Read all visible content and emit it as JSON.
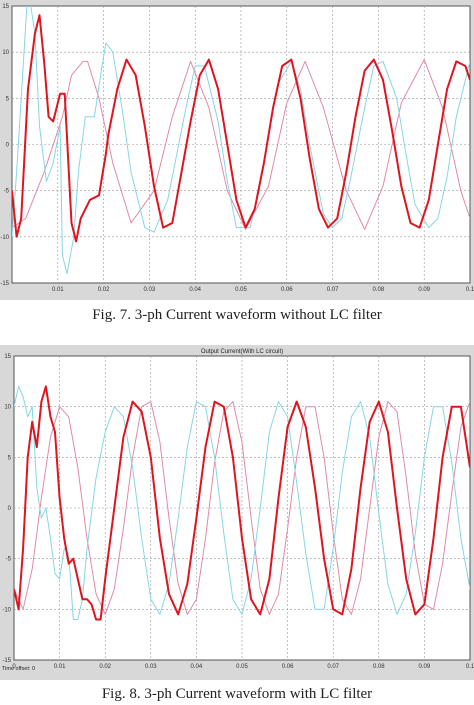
{
  "colors": {
    "phase_a": "#e0141e",
    "phase_b": "#e08aa6",
    "phase_c": "#86d6e3",
    "plot_bg": "#ffffff",
    "frame_bg": "#d8d8d8",
    "grid": "#9a9a9a"
  },
  "captions": {
    "fig7": "Fig. 7.   3-ph Current waveform without LC filter",
    "fig8": "Fig. 8.   3-ph Current waveform with LC filter"
  },
  "chart_data": [
    {
      "type": "line",
      "title": "",
      "xlim": [
        0,
        0.1
      ],
      "ylim": [
        -15,
        15
      ],
      "xticks": [
        "0.01",
        "0.02",
        "0.03",
        "0.04",
        "0.05",
        "0.06",
        "0.07",
        "0.08",
        "0.09",
        "0.1"
      ],
      "yticks": [
        "15",
        "10",
        "5",
        "0",
        "-5",
        "-10",
        "-15"
      ],
      "grid": true,
      "series": [
        {
          "color": "#e0141e",
          "x": [
            0,
            0.001,
            0.002,
            0.0035,
            0.005,
            0.006,
            0.007,
            0.008,
            0.009,
            0.0105,
            0.0115,
            0.013,
            0.014,
            0.015,
            0.017,
            0.019,
            0.0205,
            0.021,
            0.023,
            0.025,
            0.027,
            0.029,
            0.031,
            0.033,
            0.035,
            0.037,
            0.039,
            0.041,
            0.043,
            0.045,
            0.047,
            0.049,
            0.051,
            0.053,
            0.055,
            0.057,
            0.059,
            0.061,
            0.063,
            0.065,
            0.067,
            0.069,
            0.071,
            0.073,
            0.075,
            0.077,
            0.079,
            0.081,
            0.083,
            0.085,
            0.087,
            0.089,
            0.091,
            0.093,
            0.095,
            0.097,
            0.099,
            0.1
          ],
          "y": [
            -5,
            -10,
            -8,
            6,
            12,
            14,
            9,
            3,
            2.5,
            5.5,
            5.5,
            -8.5,
            -10.5,
            -8,
            -6,
            -5.5,
            -1,
            1,
            6,
            9.2,
            7.5,
            2,
            -4.5,
            -9,
            -8.5,
            -3,
            2.5,
            7.5,
            9.2,
            6,
            0,
            -6,
            -9,
            -7,
            -2,
            4,
            8.5,
            9.2,
            5,
            -1.5,
            -7,
            -9,
            -8,
            -3,
            3,
            8,
            9.2,
            7,
            1.5,
            -4.5,
            -8.5,
            -9,
            -6,
            0,
            6,
            9,
            8.5,
            7
          ]
        },
        {
          "color": "#e08aa6",
          "x": [
            0,
            0.003,
            0.007,
            0.011,
            0.013,
            0.0155,
            0.0165,
            0.019,
            0.022,
            0.026,
            0.031,
            0.035,
            0.039,
            0.043,
            0.047,
            0.051,
            0.056,
            0.06,
            0.064,
            0.068,
            0.073,
            0.077,
            0.081,
            0.085,
            0.09,
            0.094,
            0.098,
            0.1
          ],
          "y": [
            -9,
            -8,
            -3,
            3,
            7.5,
            9,
            9,
            5,
            -2,
            -8.5,
            -5,
            3,
            9,
            4,
            -5,
            -9.2,
            -4.5,
            4.5,
            9,
            4,
            -5,
            -9.2,
            -4.5,
            4.5,
            9.2,
            4,
            -5,
            -8
          ]
        },
        {
          "color": "#86d6e3",
          "x": [
            0,
            0.001,
            0.002,
            0.0035,
            0.005,
            0.006,
            0.0075,
            0.009,
            0.0105,
            0.011,
            0.012,
            0.0135,
            0.0145,
            0.016,
            0.018,
            0.0195,
            0.0205,
            0.022,
            0.024,
            0.026,
            0.029,
            0.031,
            0.034,
            0.036,
            0.038,
            0.04,
            0.042,
            0.045,
            0.047,
            0.049,
            0.052,
            0.054,
            0.056,
            0.058,
            0.061,
            0.063,
            0.065,
            0.068,
            0.07,
            0.072,
            0.074,
            0.077,
            0.079,
            0.081,
            0.084,
            0.086,
            0.088,
            0.091,
            0.093,
            0.095,
            0.097,
            0.1
          ],
          "y": [
            -10,
            -3,
            5,
            17,
            12,
            2,
            -4,
            -2,
            2,
            -12,
            -14,
            -10,
            -3,
            3,
            3,
            8,
            11,
            10,
            4,
            -3,
            -9,
            -9.5,
            -6,
            -1,
            4,
            8.5,
            8.5,
            2.5,
            -4,
            -9,
            -9,
            -5,
            1,
            6.5,
            9,
            6,
            0,
            -7.5,
            -9,
            -8,
            -3.5,
            4,
            8.5,
            9,
            5,
            -1,
            -6.5,
            -9,
            -8,
            -3.5,
            3,
            9
          ]
        }
      ]
    },
    {
      "type": "line",
      "title": "Output Current(With LC circuit)",
      "xlabel": "Time offset:  0",
      "xlim": [
        0,
        0.1
      ],
      "ylim": [
        -15,
        15
      ],
      "xticks": [
        "0",
        "0.01",
        "0.02",
        "0.03",
        "0.04",
        "0.05",
        "0.06",
        "0.07",
        "0.08",
        "0.09",
        "0.1"
      ],
      "yticks": [
        "15",
        "10",
        "5",
        "0",
        "-5",
        "-10",
        "-15"
      ],
      "grid": true,
      "series": [
        {
          "color": "#e0141e",
          "x": [
            0,
            0.001,
            0.002,
            0.003,
            0.004,
            0.005,
            0.006,
            0.007,
            0.008,
            0.009,
            0.01,
            0.011,
            0.012,
            0.013,
            0.014,
            0.015,
            0.016,
            0.017,
            0.018,
            0.019,
            0.02,
            0.022,
            0.024,
            0.026,
            0.028,
            0.03,
            0.032,
            0.034,
            0.036,
            0.038,
            0.04,
            0.042,
            0.044,
            0.046,
            0.048,
            0.05,
            0.052,
            0.054,
            0.056,
            0.058,
            0.06,
            0.062,
            0.064,
            0.066,
            0.068,
            0.07,
            0.072,
            0.074,
            0.076,
            0.078,
            0.08,
            0.082,
            0.084,
            0.086,
            0.088,
            0.09,
            0.092,
            0.094,
            0.096,
            0.098,
            0.1
          ],
          "y": [
            -8,
            -10,
            -4,
            5,
            8.5,
            6,
            10.5,
            12,
            9,
            7.5,
            1,
            -3,
            -5.5,
            -5,
            -7,
            -9,
            -9,
            -9.5,
            -11,
            -11,
            -7,
            0,
            7,
            10.5,
            9.5,
            5,
            -3,
            -8.5,
            -10.5,
            -7.5,
            -1,
            6,
            10.5,
            10,
            5,
            -3,
            -9,
            -10.5,
            -7,
            1,
            8,
            10.5,
            8,
            2,
            -5,
            -10,
            -10.5,
            -6,
            2,
            8.5,
            10.5,
            7.5,
            0,
            -7,
            -10.5,
            -9.5,
            -3,
            5,
            10,
            10,
            4
          ]
        },
        {
          "color": "#e08aa6",
          "x": [
            0,
            0.002,
            0.004,
            0.006,
            0.008,
            0.01,
            0.012,
            0.014,
            0.016,
            0.018,
            0.02,
            0.022,
            0.024,
            0.026,
            0.028,
            0.03,
            0.032,
            0.034,
            0.036,
            0.038,
            0.04,
            0.042,
            0.044,
            0.046,
            0.048,
            0.05,
            0.052,
            0.054,
            0.056,
            0.058,
            0.06,
            0.062,
            0.064,
            0.066,
            0.068,
            0.07,
            0.072,
            0.074,
            0.076,
            0.078,
            0.08,
            0.082,
            0.084,
            0.086,
            0.088,
            0.09,
            0.092,
            0.094,
            0.096,
            0.098,
            0.1
          ],
          "y": [
            -8,
            -10,
            -6,
            1,
            7,
            10,
            9,
            4,
            -3,
            -8.5,
            -10.5,
            -8,
            -2,
            5,
            10,
            10.5,
            6.5,
            -1,
            -7.5,
            -10.5,
            -9,
            -3,
            4.5,
            9.5,
            10.5,
            6.5,
            -1,
            -8,
            -10.5,
            -8.5,
            -2,
            5,
            10,
            10,
            5,
            -2.5,
            -9,
            -10.5,
            -7,
            0,
            7,
            10.5,
            9.5,
            3,
            -4.5,
            -9.5,
            -10,
            -5.5,
            1.5,
            8,
            10.5
          ]
        },
        {
          "color": "#86d6e3",
          "x": [
            0,
            0.001,
            0.002,
            0.003,
            0.004,
            0.005,
            0.006,
            0.007,
            0.008,
            0.009,
            0.01,
            0.011,
            0.012,
            0.013,
            0.014,
            0.015,
            0.016,
            0.018,
            0.02,
            0.022,
            0.024,
            0.026,
            0.028,
            0.03,
            0.032,
            0.034,
            0.036,
            0.038,
            0.04,
            0.042,
            0.044,
            0.046,
            0.048,
            0.05,
            0.052,
            0.054,
            0.056,
            0.058,
            0.06,
            0.062,
            0.064,
            0.066,
            0.068,
            0.07,
            0.072,
            0.074,
            0.076,
            0.078,
            0.08,
            0.082,
            0.084,
            0.086,
            0.088,
            0.09,
            0.092,
            0.094,
            0.096,
            0.098,
            0.1
          ],
          "y": [
            10,
            12,
            11,
            9,
            10,
            2,
            -1,
            0,
            -3,
            -6.5,
            -7,
            -4,
            -4.5,
            -11,
            -11,
            -9,
            -4,
            3,
            7.5,
            10,
            9,
            4,
            -3,
            -9,
            -10.5,
            -7.5,
            -1,
            6,
            10.5,
            10,
            5,
            -2.5,
            -9,
            -10.5,
            -7,
            0,
            7.5,
            10.5,
            9,
            2.5,
            -4.5,
            -10,
            -10,
            -4,
            3.5,
            9,
            10.5,
            7,
            -0.5,
            -7.5,
            -10.5,
            -8.5,
            -2.5,
            5,
            10,
            10,
            4.5,
            -3,
            -8
          ]
        }
      ]
    }
  ]
}
